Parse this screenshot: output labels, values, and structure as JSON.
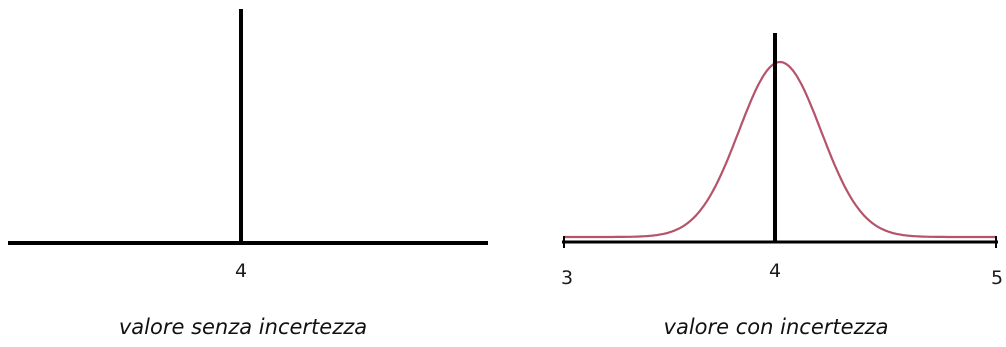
{
  "left_panel": {
    "mark_label": "4",
    "caption": "valore senza incertezza"
  },
  "right_panel": {
    "tick_labels": [
      "3",
      "4",
      "5"
    ],
    "caption": "valore con incertezza",
    "curve_color": "#b5536a"
  },
  "chart_data": [
    {
      "type": "line",
      "description_source": "left panel",
      "x_value": 4,
      "xticks": [
        "4"
      ]
    },
    {
      "type": "line",
      "description_source": "right panel",
      "xlim": [
        3,
        5
      ],
      "xticks": [
        "3",
        "4",
        "5"
      ],
      "mean": 4,
      "x": [
        3.0,
        3.2,
        3.4,
        3.5,
        3.6,
        3.7,
        3.8,
        3.9,
        4.0,
        4.1,
        4.2,
        4.3,
        4.4,
        4.5,
        4.6,
        4.8,
        5.0
      ],
      "y": [
        0.0,
        0.01,
        0.07,
        0.15,
        0.28,
        0.46,
        0.67,
        0.87,
        1.0,
        0.87,
        0.67,
        0.46,
        0.28,
        0.15,
        0.07,
        0.01,
        0.0
      ]
    }
  ]
}
